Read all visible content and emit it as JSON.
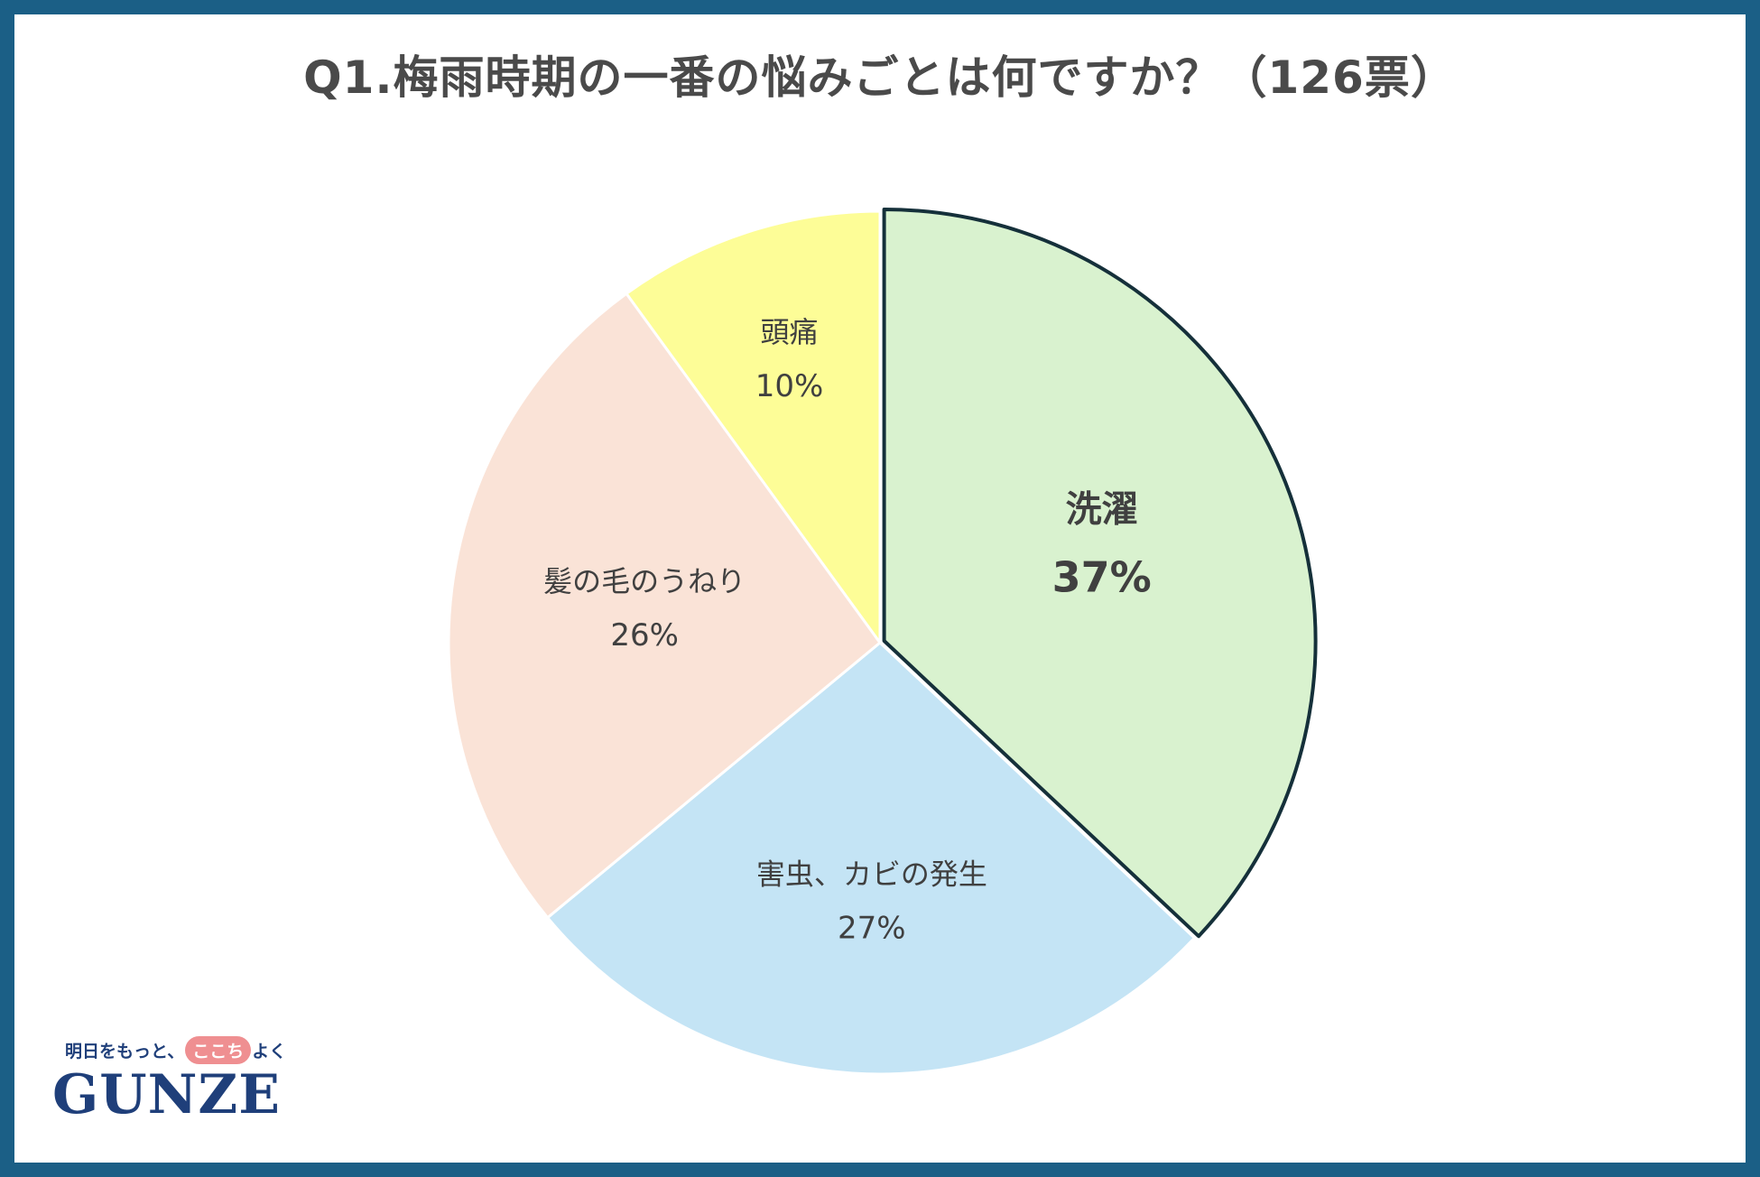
{
  "chart_data": {
    "type": "pie",
    "title": "Q1.梅雨時期の一番の悩みごとは何ですか？（126票）",
    "start_angle_deg": 0,
    "direction": "clockwise",
    "highlighted": "洗濯",
    "slices": [
      {
        "label": "洗濯",
        "value": 37,
        "value_label": "37%",
        "color": "#d9f2cf"
      },
      {
        "label": "害虫、カビの発生",
        "value": 27,
        "value_label": "27%",
        "color": "#c4e4f5"
      },
      {
        "label": "髪の毛のうねり",
        "value": 26,
        "value_label": "26%",
        "color": "#fae3d7"
      },
      {
        "label": "頭痛",
        "value": 10,
        "value_label": "10%",
        "color": "#fdfd97"
      }
    ]
  },
  "logo": {
    "tagline_pre": "明日をもっと、",
    "tagline_mark": "ここち",
    "tagline_post": "よく",
    "brand": "GUNZE",
    "brand_color": "#1f3f7a",
    "mark_color": "#ef8f91"
  },
  "frame_color": "#1b5f86"
}
